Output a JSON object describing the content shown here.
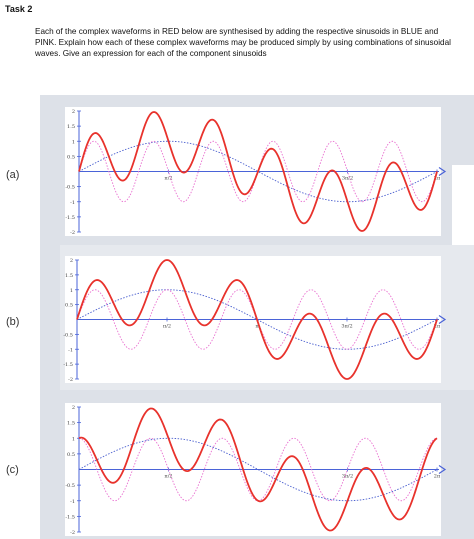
{
  "task": {
    "title": "Task 2",
    "text": "Each of the complex waveforms in RED below are synthesised by adding the respective sinusoids in BLUE and PINK. Explain how each of these complex waveforms may be produced simply by using combinations of sinusoidal waves. Give an expression for each of the component sinusoids"
  },
  "colors": {
    "red": "#e8322c",
    "blue": "#4a5fcf",
    "pink": "#e96fd0",
    "axis": "#4a63d8",
    "background_shape": "#dde1e8"
  },
  "chart_data": [
    {
      "type": "line",
      "panel_label": "(a)",
      "x_tick_labels": [
        "π/2",
        "3π/2",
        "2π"
      ],
      "y_tick_labels": [
        "2",
        "1.5",
        "1",
        "0.5",
        "-0.5",
        "-1",
        "-1.5",
        "-2"
      ],
      "xlim": [
        0,
        6.283
      ],
      "ylim": [
        -2,
        2
      ],
      "series": [
        {
          "color": "blue",
          "style": "dotted",
          "amplitude": 1,
          "frequency": 1,
          "phase": 0
        },
        {
          "color": "pink",
          "style": "dotted",
          "amplitude": 1,
          "frequency": 6,
          "phase": 0
        },
        {
          "color": "red",
          "style": "solid",
          "expression": "blue + pink"
        }
      ]
    },
    {
      "type": "line",
      "panel_label": "(b)",
      "x_tick_labels": [
        "π/2",
        "π",
        "3π/2",
        "2π"
      ],
      "y_tick_labels": [
        "2",
        "1.5",
        "1",
        "0.5",
        "-0.5",
        "-1",
        "-1.5",
        "-2"
      ],
      "xlim": [
        0,
        6.283
      ],
      "ylim": [
        -2,
        2
      ],
      "series": [
        {
          "color": "blue",
          "style": "dotted",
          "amplitude": 1,
          "frequency": 1,
          "phase": 0
        },
        {
          "color": "pink",
          "style": "dotted",
          "amplitude": 1,
          "frequency": 5,
          "phase": 0
        },
        {
          "color": "red",
          "style": "solid",
          "expression": "blue + pink"
        }
      ]
    },
    {
      "type": "line",
      "panel_label": "(c)",
      "x_tick_labels": [
        "π/2",
        "3π/2",
        "2π"
      ],
      "y_tick_labels": [
        "2",
        "1.5",
        "1",
        "0.5",
        "-0.5",
        "-1",
        "-1.5",
        "-2"
      ],
      "xlim": [
        0,
        6.283
      ],
      "ylim": [
        -2,
        2
      ],
      "series": [
        {
          "color": "blue",
          "style": "dotted",
          "amplitude": 1,
          "frequency": 1,
          "phase": 0
        },
        {
          "color": "pink",
          "style": "dotted",
          "amplitude": 1,
          "frequency": 5,
          "phase": 1.571
        },
        {
          "color": "red",
          "style": "solid",
          "expression": "blue + pink"
        }
      ]
    }
  ]
}
